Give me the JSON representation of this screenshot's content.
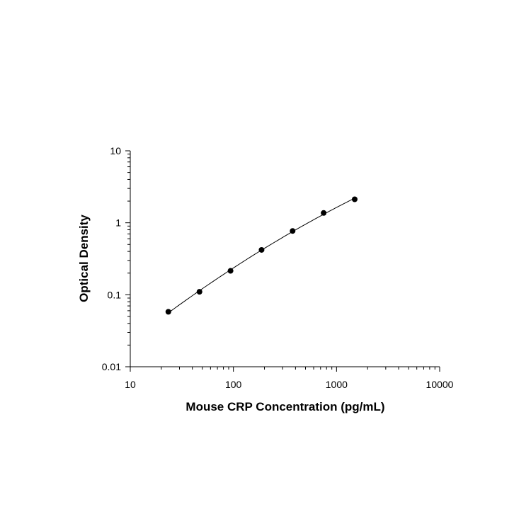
{
  "chart_data": {
    "type": "scatter",
    "title": "",
    "xlabel": "Mouse CRP Concentration (pg/mL)",
    "ylabel": "Optical Density",
    "xscale": "log",
    "yscale": "log",
    "xlim": [
      10,
      10000
    ],
    "ylim": [
      0.01,
      10
    ],
    "xticks": [
      {
        "value": 10,
        "label": "10"
      },
      {
        "value": 100,
        "label": "100"
      },
      {
        "value": 1000,
        "label": "1000"
      },
      {
        "value": 10000,
        "label": "10000"
      }
    ],
    "yticks": [
      {
        "value": 0.01,
        "label": "0.01"
      },
      {
        "value": 0.1,
        "label": "0.1"
      },
      {
        "value": 1,
        "label": "1"
      },
      {
        "value": 10,
        "label": "10"
      }
    ],
    "grid": false,
    "fit_line": true,
    "series": [
      {
        "x": [
          23.4,
          46.9,
          93.8,
          187.5,
          375,
          750,
          1500
        ],
        "y": [
          0.058,
          0.11,
          0.215,
          0.42,
          0.77,
          1.37,
          2.12
        ]
      }
    ],
    "colors": {
      "marker": "#000000",
      "line": "#000000",
      "axis": "#000000"
    }
  }
}
